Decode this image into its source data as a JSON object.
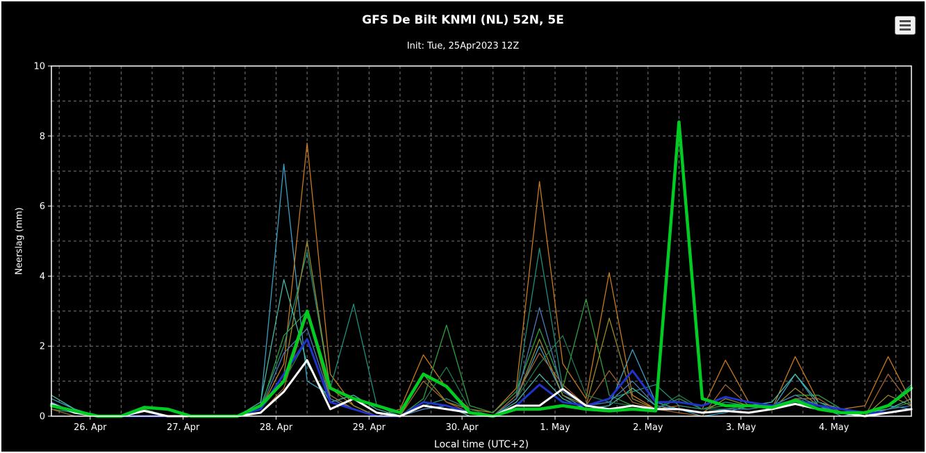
{
  "window": {
    "background": "#000000",
    "border_color": "#ffffff",
    "text_color": "#ffffff"
  },
  "chart": {
    "title": "GFS De Bilt KNMI (NL) 52N, 5E",
    "subtitle": "Init: Tue, 25Apr2023 12Z",
    "x_title": "Local time (UTC+2)",
    "y_title": "Neerslag (mm)",
    "menu_icon": "hamburger-icon"
  },
  "chart_data": {
    "type": "line",
    "title": "GFS De Bilt KNMI (NL) 52N, 5E",
    "subtitle": "Init: Tue, 25Apr2023 12Z",
    "xlabel": "Local time (UTC+2)",
    "ylabel": "Neerslag (mm)",
    "xlim": [
      -10,
      212
    ],
    "ylim": [
      0,
      10
    ],
    "x_unit_hint": "x in hours relative to 26 Apr 00:00 local time, 6-hourly steps",
    "x_ticks": {
      "values": [
        0,
        24,
        48,
        72,
        96,
        120,
        144,
        168,
        192
      ],
      "labels": [
        "26. Apr",
        "27. Apr",
        "28. Apr",
        "29. Apr",
        "30. Apr",
        "1. May",
        "2. May",
        "3. May",
        "4. May"
      ]
    },
    "y_ticks": {
      "values": [
        0,
        2,
        4,
        6,
        8,
        10
      ],
      "labels": [
        "0",
        "2",
        "4",
        "6",
        "8",
        "10"
      ]
    },
    "grid": {
      "x_step": 8,
      "y_step": 1,
      "color": "#7a7a7a",
      "dash": "4 4"
    },
    "legend": "none",
    "x_hours": [
      -10,
      -4,
      2,
      8,
      14,
      20,
      26,
      32,
      38,
      44,
      50,
      56,
      62,
      68,
      74,
      80,
      86,
      92,
      98,
      104,
      110,
      116,
      122,
      128,
      134,
      140,
      146,
      152,
      158,
      164,
      170,
      176,
      182,
      188,
      194,
      200,
      206,
      212
    ],
    "series": [
      {
        "name": "member-cyan",
        "color": "#3b9fc4",
        "width": 1.3,
        "values": [
          0.5,
          0.2,
          0,
          0,
          0,
          0,
          0,
          0,
          0,
          0.3,
          7.2,
          1.0,
          0.6,
          0.2,
          0,
          0,
          0.2,
          0.3,
          0,
          0,
          0.5,
          2.0,
          0.6,
          0.2,
          0.3,
          1.9,
          0.4,
          0.2,
          0,
          0.1,
          0.3,
          0.2,
          1.2,
          0.3,
          0,
          0.1,
          0.3,
          0.2
        ]
      },
      {
        "name": "member-orange",
        "color": "#c8791e",
        "width": 1.3,
        "values": [
          0.3,
          0.1,
          0,
          0,
          0,
          0,
          0,
          0,
          0,
          0.2,
          1.5,
          7.8,
          1.2,
          0.3,
          0,
          0.2,
          1.75,
          0.8,
          0.2,
          0.1,
          0.8,
          6.7,
          1.5,
          0.5,
          4.1,
          0.6,
          0.2,
          0.3,
          0.2,
          1.6,
          0.4,
          0.2,
          1.7,
          0.4,
          0.2,
          0.3,
          1.7,
          0.4
        ]
      },
      {
        "name": "member-teal",
        "color": "#1d8f7b",
        "width": 1.3,
        "values": [
          0.4,
          0.1,
          0,
          0,
          0,
          0,
          0,
          0,
          0,
          0.3,
          2.0,
          4.7,
          0.8,
          3.2,
          0.3,
          0,
          0.3,
          0.5,
          0.2,
          0,
          0.6,
          4.8,
          0.8,
          0.3,
          0.5,
          0.7,
          0.9,
          0.3,
          0.2,
          0.4,
          0.3,
          0.2,
          0.5,
          0.3,
          0.2,
          0,
          0.3,
          0.9
        ]
      },
      {
        "name": "member-green",
        "color": "#2f9e41",
        "width": 1.3,
        "values": [
          0.2,
          0.1,
          0,
          0,
          0.2,
          0,
          0,
          0,
          0,
          0.2,
          2.3,
          3.0,
          0.5,
          0.2,
          0,
          0,
          0.5,
          2.6,
          0.3,
          0.1,
          0.7,
          2.5,
          0.8,
          3.35,
          0.6,
          0.3,
          0.2,
          0.5,
          0.2,
          0.3,
          0.2,
          0.3,
          0.6,
          0.6,
          0.2,
          0.1,
          0.2,
          0.4
        ]
      },
      {
        "name": "member-olive",
        "color": "#9a8a28",
        "width": 1.3,
        "values": [
          0.3,
          0.1,
          0,
          0,
          0,
          0,
          0,
          0,
          0,
          0.2,
          1.2,
          5.0,
          0.8,
          0.3,
          0,
          0,
          1.2,
          0.4,
          0.2,
          0,
          0.5,
          2.2,
          0.6,
          0.3,
          2.8,
          0.5,
          0.2,
          0.2,
          0.1,
          0.5,
          0.3,
          0.2,
          0.8,
          0.3,
          0.1,
          0,
          0.6,
          0.3
        ]
      },
      {
        "name": "member-lightteal",
        "color": "#45b8a5",
        "width": 1.3,
        "values": [
          0.6,
          0.2,
          0,
          0,
          0,
          0,
          0,
          0,
          0,
          0.4,
          3.9,
          1.5,
          0.4,
          0.6,
          0.2,
          0,
          0.2,
          0.3,
          0,
          0,
          0.4,
          1.2,
          0.5,
          0.2,
          0.3,
          0.8,
          0.3,
          0.2,
          0.1,
          0.2,
          0.3,
          0.4,
          1.2,
          0.4,
          0.2,
          0.1,
          0.2,
          0.5
        ]
      },
      {
        "name": "member-brown",
        "color": "#a2642c",
        "width": 1.3,
        "values": [
          0.2,
          0,
          0,
          0,
          0,
          0,
          0,
          0,
          0,
          0.1,
          0.8,
          2.9,
          0.6,
          0.2,
          0,
          0,
          1.0,
          0.4,
          0.1,
          0,
          0.6,
          1.8,
          0.9,
          0.3,
          1.3,
          0.4,
          0.2,
          0.1,
          0,
          0.9,
          0.3,
          0.2,
          0.5,
          0.5,
          0.1,
          0,
          1.2,
          0.3
        ]
      },
      {
        "name": "member-seagreen",
        "color": "#1f7a4d",
        "width": 1.3,
        "values": [
          0.3,
          0.1,
          0,
          0,
          0,
          0,
          0,
          0,
          0,
          0.2,
          1.0,
          2.2,
          0.4,
          0.2,
          0,
          0,
          0.4,
          1.4,
          0.2,
          0,
          0.5,
          1.5,
          2.3,
          0.6,
          0.4,
          0.3,
          0.2,
          0.6,
          0.2,
          0.2,
          0.3,
          0.2,
          0.4,
          0.4,
          0.1,
          0,
          0.2,
          0.4
        ]
      },
      {
        "name": "member-steelblue",
        "color": "#4a7ab8",
        "width": 1.3,
        "values": [
          0.4,
          0.1,
          0,
          0,
          0,
          0,
          0,
          0,
          0,
          0.2,
          1.8,
          2.5,
          0.5,
          0.2,
          0,
          0,
          0.2,
          0.3,
          0.1,
          0,
          0.5,
          3.1,
          0.7,
          0.3,
          0.4,
          1.0,
          0.3,
          0.2,
          0.1,
          0.2,
          0.2,
          0.3,
          0.6,
          0.3,
          0.1,
          0,
          0.2,
          0.3
        ]
      },
      {
        "name": "thick-blue",
        "color": "#2233cc",
        "width": 3,
        "values": [
          0.3,
          0.1,
          0,
          0,
          0,
          0,
          0,
          0,
          0,
          0.2,
          1.2,
          2.2,
          0.4,
          0.2,
          0,
          0,
          0.4,
          0.3,
          0.1,
          0,
          0.3,
          0.9,
          0.4,
          0.3,
          0.5,
          1.3,
          0.4,
          0.4,
          0.3,
          0.55,
          0.4,
          0.3,
          0.45,
          0.3,
          0.2,
          0.1,
          0.1,
          0.2
        ]
      },
      {
        "name": "thick-white",
        "color": "#ffffff",
        "width": 3,
        "values": [
          0.35,
          0.1,
          0,
          0,
          0.15,
          0,
          0,
          0,
          0,
          0.1,
          0.7,
          1.6,
          0.2,
          0.5,
          0.1,
          0,
          0.3,
          0.2,
          0.1,
          0,
          0.3,
          0.3,
          0.78,
          0.3,
          0.2,
          0.3,
          0.2,
          0.2,
          0.1,
          0.15,
          0.1,
          0.2,
          0.35,
          0.2,
          0.1,
          0,
          0.1,
          0.2
        ]
      },
      {
        "name": "thick-green",
        "color": "#00cc22",
        "width": 4.5,
        "values": [
          0.3,
          0.15,
          0,
          0,
          0.25,
          0.2,
          0,
          0,
          0,
          0.3,
          1.0,
          3.0,
          0.8,
          0.5,
          0.3,
          0.1,
          1.2,
          0.85,
          0.1,
          0,
          0.2,
          0.2,
          0.3,
          0.2,
          0.15,
          0.2,
          0.15,
          8.4,
          0.5,
          0.3,
          0.3,
          0.25,
          0.45,
          0.2,
          0.1,
          0.1,
          0.3,
          0.8
        ]
      }
    ]
  }
}
